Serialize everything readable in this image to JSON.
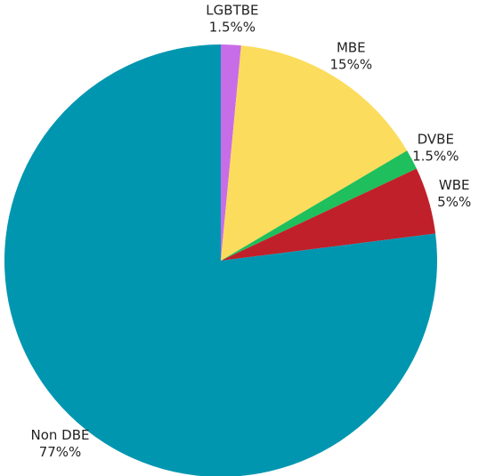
{
  "chart_data": {
    "type": "pie",
    "start_angle": "top",
    "direction": "clockwise",
    "slices": [
      {
        "label": "LGBTBE",
        "value": 1.5,
        "value_label": "1.5%%",
        "color": "#c86de8"
      },
      {
        "label": "MBE",
        "value": 15,
        "value_label": "15%%",
        "color": "#fcdc5c"
      },
      {
        "label": "DVBE",
        "value": 1.5,
        "value_label": "1.5%%",
        "color": "#1ebf5c"
      },
      {
        "label": "WBE",
        "value": 5,
        "value_label": "5%%",
        "color": "#c0202a"
      },
      {
        "label": "Non DBE",
        "value": 77,
        "value_label": "77%%",
        "color": "#0096b0"
      }
    ]
  }
}
